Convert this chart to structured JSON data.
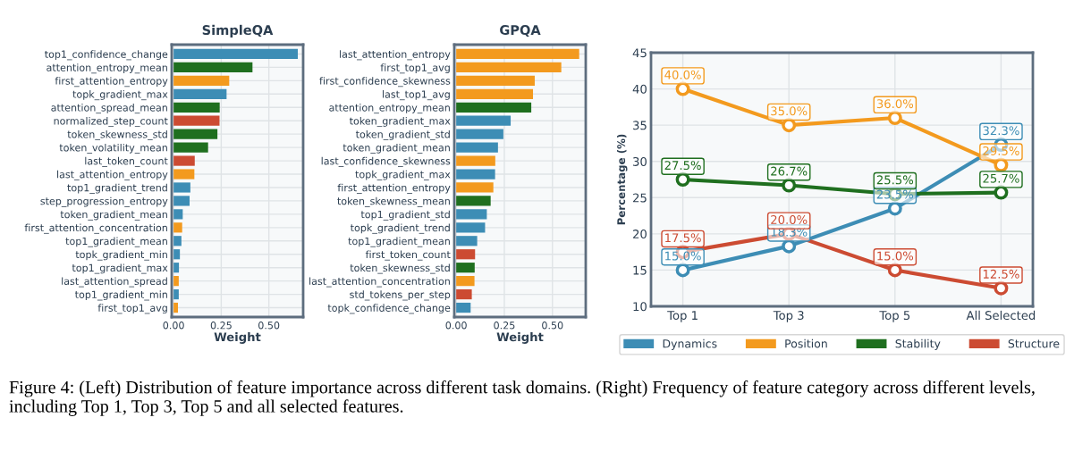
{
  "chart_data": [
    {
      "type": "bar",
      "orientation": "horizontal",
      "title": "SimpleQA",
      "xlabel": "Weight",
      "grid": true,
      "categories": [
        "top1_confidence_change",
        "attention_entropy_mean",
        "first_attention_entropy",
        "topk_gradient_max",
        "attention_spread_mean",
        "normalized_step_count",
        "token_skewness_std",
        "token_volatility_mean",
        "last_token_count",
        "last_attention_entropy",
        "top1_gradient_trend",
        "step_progression_entropy",
        "token_gradient_mean",
        "first_attention_concentration",
        "top1_gradient_mean",
        "topk_gradient_min",
        "top1_gradient_max",
        "last_attention_spread",
        "top1_gradient_min",
        "first_top1_avg"
      ],
      "values": [
        0.652,
        0.414,
        0.292,
        0.278,
        0.242,
        0.241,
        0.23,
        0.181,
        0.111,
        0.109,
        0.088,
        0.084,
        0.048,
        0.045,
        0.041,
        0.033,
        0.028,
        0.027,
        0.027,
        0.023
      ],
      "colors": [
        "#3d8db5",
        "#1f6f1f",
        "#f39a1e",
        "#3d8db5",
        "#1f6f1f",
        "#cc4b32",
        "#1f6f1f",
        "#1f6f1f",
        "#cc4b32",
        "#f39a1e",
        "#3d8db5",
        "#3d8db5",
        "#3d8db5",
        "#f39a1e",
        "#3d8db5",
        "#3d8db5",
        "#3d8db5",
        "#f39a1e",
        "#3d8db5",
        "#f39a1e"
      ],
      "xlim": [
        -0.01,
        0.68
      ],
      "xticks": [
        {
          "value": 0,
          "label": "0.00"
        },
        {
          "value": 0.25,
          "label": "0.25"
        },
        {
          "value": 0.5,
          "label": "0.50"
        }
      ]
    },
    {
      "type": "bar",
      "orientation": "horizontal",
      "title": "GPQA",
      "xlabel": "Weight",
      "grid": true,
      "categories": [
        "last_attention_entropy",
        "first_top1_avg",
        "first_confidence_skewness",
        "last_top1_avg",
        "attention_entropy_mean",
        "token_gradient_max",
        "token_gradient_std",
        "token_gradient_mean",
        "last_confidence_skewness",
        "topk_gradient_max",
        "first_attention_entropy",
        "token_skewness_mean",
        "top1_gradient_std",
        "topk_gradient_trend",
        "top1_gradient_mean",
        "first_token_count",
        "token_skewness_std",
        "last_attention_concentration",
        "std_tokens_per_step",
        "topk_confidence_change"
      ],
      "values": [
        0.639,
        0.546,
        0.408,
        0.399,
        0.39,
        0.283,
        0.245,
        0.217,
        0.203,
        0.202,
        0.193,
        0.179,
        0.159,
        0.15,
        0.109,
        0.098,
        0.096,
        0.095,
        0.081,
        0.075
      ],
      "colors": [
        "#f39a1e",
        "#f39a1e",
        "#f39a1e",
        "#f39a1e",
        "#1f6f1f",
        "#3d8db5",
        "#3d8db5",
        "#3d8db5",
        "#f39a1e",
        "#3d8db5",
        "#f39a1e",
        "#1f6f1f",
        "#3d8db5",
        "#3d8db5",
        "#3d8db5",
        "#cc4b32",
        "#1f6f1f",
        "#f39a1e",
        "#cc4b32",
        "#3d8db5"
      ],
      "xlim": [
        -0.01,
        0.673
      ],
      "xticks": [
        {
          "value": 0,
          "label": "0.00"
        },
        {
          "value": 0.25,
          "label": "0.25"
        },
        {
          "value": 0.5,
          "label": "0.50"
        }
      ]
    },
    {
      "type": "line",
      "ylabel": "Percentage (%)",
      "grid": true,
      "legend": "bottom",
      "marker": "circle",
      "line_style": "solid",
      "categories": [
        "Top 1",
        "Top 3",
        "Top 5",
        "All Selected"
      ],
      "ylim": [
        10,
        45
      ],
      "yticks": [
        10,
        15,
        20,
        25,
        30,
        35,
        40,
        45
      ],
      "series": [
        {
          "name": "Dynamics",
          "color": "#3d8db5",
          "values": [
            15.0,
            18.3,
            23.5,
            32.3
          ],
          "value_labels": [
            "15.0%",
            "18.3%",
            "23.5%",
            "32.3%"
          ]
        },
        {
          "name": "Position",
          "color": "#f39a1e",
          "values": [
            40.0,
            35.0,
            36.0,
            29.5
          ],
          "value_labels": [
            "40.0%",
            "35.0%",
            "36.0%",
            "29.5%"
          ]
        },
        {
          "name": "Stability",
          "color": "#1f6f1f",
          "values": [
            27.5,
            26.7,
            25.5,
            25.7
          ],
          "value_labels": [
            "27.5%",
            "26.7%",
            "25.5%",
            "25.7%"
          ]
        },
        {
          "name": "Structure",
          "color": "#cc4b32",
          "values": [
            17.5,
            20.0,
            15.0,
            12.5
          ],
          "value_labels": [
            "17.5%",
            "20.0%",
            "15.0%",
            "12.5%"
          ]
        }
      ],
      "annotations": [
        "Figure 4: (Left) Distribution of feature importance across different task domains. (Right) Frequency of feature category across different levels, including Top 1, Top 3, Top 5 and all selected features."
      ]
    }
  ]
}
